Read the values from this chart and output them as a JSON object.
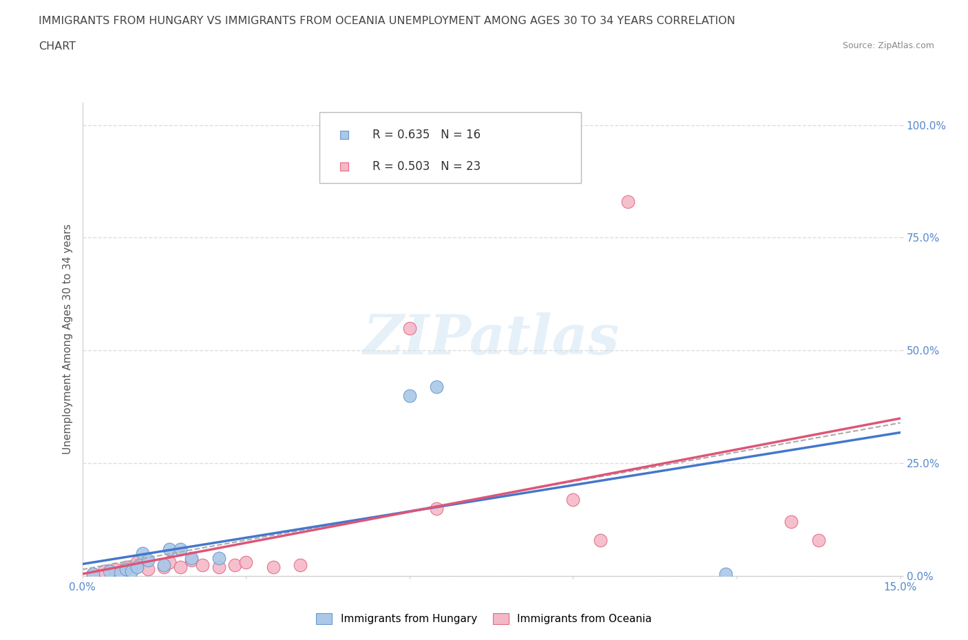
{
  "title_line1": "IMMIGRANTS FROM HUNGARY VS IMMIGRANTS FROM OCEANIA UNEMPLOYMENT AMONG AGES 30 TO 34 YEARS CORRELATION",
  "title_line2": "CHART",
  "source": "Source: ZipAtlas.com",
  "ylabel": "Unemployment Among Ages 30 to 34 years",
  "xlim": [
    0.0,
    0.15
  ],
  "ylim": [
    0.0,
    1.05
  ],
  "xticks": [
    0.0,
    0.03,
    0.06,
    0.09,
    0.12,
    0.15
  ],
  "yticks": [
    0.0,
    0.25,
    0.5,
    0.75,
    1.0
  ],
  "xticklabels": [
    "0.0%",
    "",
    "",
    "",
    "",
    "15.0%"
  ],
  "yticklabels": [
    "0.0%",
    "25.0%",
    "50.0%",
    "75.0%",
    "100.0%"
  ],
  "hungary_color": "#aac8e8",
  "hungary_edge_color": "#6699cc",
  "oceania_color": "#f5b8c8",
  "oceania_edge_color": "#e06880",
  "hungary_line_color": "#4477cc",
  "oceania_line_color": "#dd5577",
  "hungary_R": 0.635,
  "hungary_N": 16,
  "oceania_R": 0.503,
  "oceania_N": 23,
  "hungary_scatter_x": [
    0.002,
    0.005,
    0.007,
    0.008,
    0.009,
    0.01,
    0.011,
    0.012,
    0.015,
    0.016,
    0.018,
    0.02,
    0.025,
    0.06,
    0.065,
    0.118
  ],
  "hungary_scatter_y": [
    0.005,
    0.01,
    0.008,
    0.015,
    0.01,
    0.02,
    0.05,
    0.035,
    0.025,
    0.06,
    0.06,
    0.04,
    0.04,
    0.4,
    0.42,
    0.005
  ],
  "oceania_scatter_x": [
    0.002,
    0.004,
    0.006,
    0.008,
    0.01,
    0.012,
    0.015,
    0.016,
    0.018,
    0.02,
    0.022,
    0.025,
    0.028,
    0.03,
    0.035,
    0.04,
    0.06,
    0.065,
    0.09,
    0.095,
    0.1,
    0.13,
    0.135
  ],
  "oceania_scatter_y": [
    0.005,
    0.01,
    0.015,
    0.02,
    0.03,
    0.015,
    0.02,
    0.03,
    0.02,
    0.035,
    0.025,
    0.02,
    0.025,
    0.03,
    0.02,
    0.025,
    0.55,
    0.15,
    0.17,
    0.08,
    0.83,
    0.12,
    0.08
  ],
  "watermark_text": "ZIPatlas",
  "background_color": "#ffffff",
  "grid_color": "#dddddd",
  "grid_linestyle": "--",
  "title_color": "#444444",
  "axis_label_color": "#555555",
  "tick_color_blue": "#5588cc",
  "tick_color_dark": "#333333",
  "marker_size": 100,
  "legend_hungary_label": "Immigrants from Hungary",
  "legend_oceania_label": "Immigrants from Oceania"
}
